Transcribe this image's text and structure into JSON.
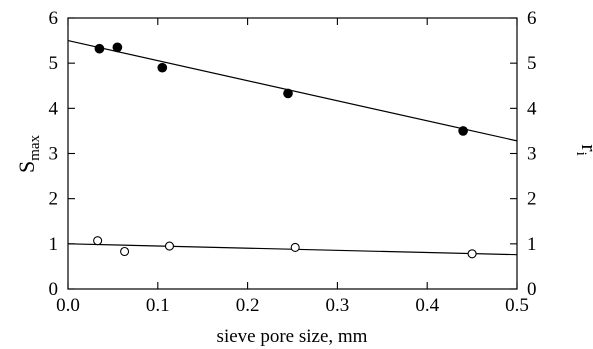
{
  "chart_data": {
    "type": "scatter",
    "x_axis": {
      "label": "sieve pore size, mm",
      "range": [
        0.0,
        0.5
      ],
      "ticks": [
        "0.0",
        "0.1",
        "0.2",
        "0.3",
        "0.4",
        "0.5"
      ],
      "tick_values": [
        0.0,
        0.1,
        0.2,
        0.3,
        0.4,
        0.5
      ]
    },
    "y_axis_left": {
      "label_main": "S",
      "label_sub": "max",
      "range": [
        0,
        6
      ],
      "ticks": [
        "0",
        "1",
        "2",
        "3",
        "4",
        "5",
        "6"
      ],
      "tick_values": [
        0,
        1,
        2,
        3,
        4,
        5,
        6
      ]
    },
    "y_axis_right": {
      "label_main": "r",
      "label_sub": "i",
      "range": [
        0,
        6
      ],
      "ticks": [
        "0",
        "1",
        "2",
        "3",
        "4",
        "5",
        "6"
      ],
      "tick_values": [
        0,
        1,
        2,
        3,
        4,
        5,
        6
      ]
    },
    "series": [
      {
        "marker": "filled-circle",
        "points": [
          {
            "x": 0.035,
            "y": 5.32
          },
          {
            "x": 0.055,
            "y": 5.35
          },
          {
            "x": 0.105,
            "y": 4.9
          },
          {
            "x": 0.245,
            "y": 4.33
          },
          {
            "x": 0.44,
            "y": 3.5
          }
        ],
        "fit_line": {
          "x": [
            0.0,
            0.5
          ],
          "y": [
            5.5,
            3.28
          ]
        }
      },
      {
        "marker": "open-circle",
        "points": [
          {
            "x": 0.033,
            "y": 1.07
          },
          {
            "x": 0.063,
            "y": 0.83
          },
          {
            "x": 0.113,
            "y": 0.95
          },
          {
            "x": 0.253,
            "y": 0.92
          },
          {
            "x": 0.45,
            "y": 0.78
          }
        ],
        "fit_line": {
          "x": [
            0.0,
            0.5
          ],
          "y": [
            1.0,
            0.76
          ]
        }
      }
    ],
    "grid": false,
    "colors": {
      "marks": "#000000",
      "open_fill": "#ffffff"
    }
  }
}
